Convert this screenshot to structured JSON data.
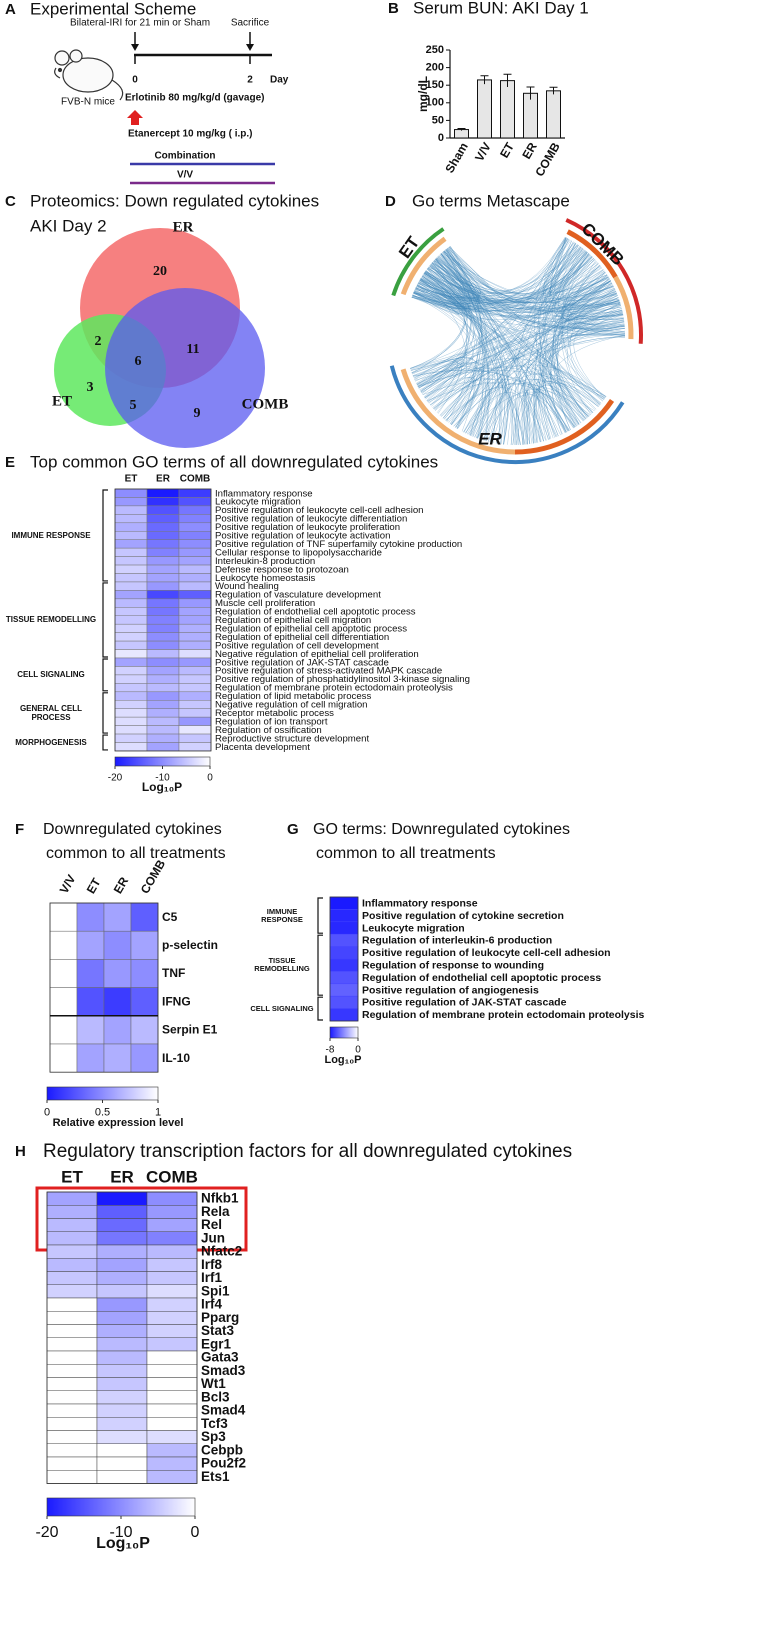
{
  "panel_a": {
    "letter": "A",
    "title": "Experimental Scheme",
    "mouse": "FVB-N mice",
    "injury": "Bilateral-IRI for 21 min or Sham",
    "endpoint": "Sacrifice",
    "timeline_ticks": [
      0,
      2
    ],
    "timeline_unit": "Day",
    "treatments": [
      {
        "label": "Erlotinib 80 mg/kg/d (gavage)",
        "color": "#2e8b2e"
      },
      {
        "label": "Etanercept 10 mg/kg ( i.p.)",
        "color": "#e02020"
      },
      {
        "label": "Combination",
        "color": "#3a3aa8"
      },
      {
        "label": "V/V",
        "color": "#7a2a8a"
      }
    ]
  },
  "panel_c": {
    "letter": "C",
    "title": [
      "Proteomics: Down regulated cytokines",
      "AKI Day 2"
    ],
    "sets": [
      {
        "name": "ER",
        "color": "#f46a6a"
      },
      {
        "name": "ET",
        "color": "#5ee85e"
      },
      {
        "name": "COMB",
        "color": "#5a5af0"
      }
    ],
    "counts": {
      "ER": 20,
      "ER_ET": 2,
      "all": 6,
      "ER_COMB": 11,
      "ET": 3,
      "ET_COMB": 5,
      "COMB": 9
    }
  },
  "panel_d": {
    "letter": "D",
    "title": "Go terms Metascape",
    "labels": [
      "ET",
      "COMB",
      "ER"
    ]
  },
  "chart_data": [
    {
      "type": "bar",
      "letter": "B",
      "title": "Serum BUN: AKI Day 1",
      "y_label": "mg/dL",
      "categories": [
        "Sham",
        "V/V",
        "ET",
        "ER",
        "COMB"
      ],
      "values": [
        24,
        165,
        163,
        127,
        134
      ],
      "errors": [
        3,
        12,
        18,
        18,
        10
      ],
      "color": "#e6e6e6",
      "ylim": [
        0,
        250
      ],
      "yticks": [
        0,
        50,
        100,
        150,
        200,
        250
      ]
    },
    {
      "type": "heatmap",
      "letter": "E",
      "title": "Top common GO terms of all downregulated cytokines",
      "columns": [
        "ET",
        "ER",
        "COMB"
      ],
      "zlim": [
        -20,
        0
      ],
      "zticks": [
        -20,
        -10,
        0
      ],
      "zlabel": "Log₁₀P",
      "colors": [
        "#1a1aff",
        "#ffffff"
      ],
      "groups": [
        {
          "label": "IMMUNE RESPONSE",
          "rows": [
            "Inflammatory response",
            "Leukocyte migration",
            "Positive regulation of leukocyte cell-cell adhesion",
            "Positive regulation of leukocyte differentiation",
            "Positive regulation of leukocyte proliferation",
            "Positive regulation of leukocyte activation",
            "Positive regulation of TNF superfamily cytokine production",
            "Cellular response to lipopolysaccharide",
            "Interleukin-8 production",
            "Defense response to protozoan",
            "Leukocyte homeostasis"
          ],
          "values": [
            [
              -10,
              -20,
              -17
            ],
            [
              -9,
              -18,
              -15
            ],
            [
              -6,
              -15,
              -12
            ],
            [
              -6,
              -14,
              -11
            ],
            [
              -7,
              -13,
              -10
            ],
            [
              -6,
              -13,
              -11
            ],
            [
              -8,
              -12,
              -10
            ],
            [
              -5,
              -11,
              -9
            ],
            [
              -5,
              -9,
              -8
            ],
            [
              -4,
              -8,
              -6
            ],
            [
              -5,
              -8,
              -7
            ]
          ]
        },
        {
          "label": "TISSUE REMODELLING",
          "rows": [
            "Wound healing",
            "Regulation of vasculature development",
            "Muscle cell proliferation",
            "Regulation of endothelial cell apoptotic process",
            "Regulation of epithelial cell migration",
            "Regulation of epithelial cell apoptotic process",
            "Regulation of epithelial cell differentiation",
            "Positive regulation of cell development",
            "Negative regulation of epithelial cell proliferation"
          ],
          "values": [
            [
              -5,
              -9,
              -6
            ],
            [
              -8,
              -16,
              -14
            ],
            [
              -6,
              -12,
              -9
            ],
            [
              -5,
              -12,
              -8
            ],
            [
              -5,
              -11,
              -8
            ],
            [
              -4,
              -11,
              -7
            ],
            [
              -4,
              -10,
              -7
            ],
            [
              -5,
              -10,
              -7
            ],
            [
              -2,
              -6,
              -3
            ]
          ]
        },
        {
          "label": "CELL SIGNALING",
          "rows": [
            "Positive regulation of JAK-STAT cascade",
            "Positive regulation of stress-activated MAPK cascade",
            "Positive regulation of phosphatidylinositol 3-kinase signaling",
            "Regulation of membrane protein ectodomain proteolysis"
          ],
          "values": [
            [
              -8,
              -10,
              -9
            ],
            [
              -4,
              -8,
              -6
            ],
            [
              -4,
              -7,
              -5
            ],
            [
              -5,
              -6,
              -5
            ]
          ]
        },
        {
          "label": "GENERAL CELL PROCESS",
          "rows": [
            "Regulation of lipid metabolic process",
            "Negative regulation of cell migration",
            "Receptor metabolic process",
            "Regulation of ion transport",
            "Regulation of ossification"
          ],
          "values": [
            [
              -6,
              -9,
              -7
            ],
            [
              -4,
              -8,
              -5
            ],
            [
              -3,
              -7,
              -5
            ],
            [
              -3,
              -6,
              -9
            ],
            [
              -3,
              -6,
              -2
            ]
          ]
        },
        {
          "label": "MORPHOGENESIS",
          "rows": [
            "Reproductive structure development",
            "Placenta development"
          ],
          "values": [
            [
              -4,
              -7,
              -5
            ],
            [
              -3,
              -8,
              -4
            ]
          ]
        }
      ]
    },
    {
      "type": "heatmap",
      "letter": "F",
      "title": [
        "Downregulated cytokines",
        "common to all treatments"
      ],
      "columns": [
        "V/V",
        "ET",
        "ER",
        "COMB"
      ],
      "zlim": [
        0,
        1
      ],
      "zticks": [
        0,
        0.5,
        1
      ],
      "zlabel": "Relative expression level",
      "colors": [
        "#1a1aff",
        "#ffffff"
      ],
      "rows": [
        "C5",
        "p-selectin",
        "TNF",
        "IFNG",
        "Serpin E1",
        "IL-10"
      ],
      "values": [
        [
          1,
          0.5,
          0.6,
          0.3
        ],
        [
          1,
          0.6,
          0.5,
          0.6
        ],
        [
          1,
          0.4,
          0.55,
          0.5
        ],
        [
          1,
          0.25,
          0.15,
          0.3
        ],
        [
          1,
          0.7,
          0.6,
          0.7
        ],
        [
          1,
          0.6,
          0.65,
          0.55
        ]
      ]
    },
    {
      "type": "heatmap",
      "letter": "G",
      "title": [
        "GO terms: Downregulated cytokines",
        "common to all treatments"
      ],
      "zlim": [
        -8,
        0
      ],
      "zticks": [
        -8,
        0
      ],
      "zlabel": "Log₁₀P",
      "colors": [
        "#1a1aff",
        "#ffffff"
      ],
      "groups": [
        {
          "label": "IMMUNE RESPONSE",
          "rows": [
            "Inflammatory response",
            "Positive regulation of cytokine secretion",
            "Leukocyte migration"
          ],
          "values": [
            [
              -8
            ],
            [
              -7.5
            ],
            [
              -7.5
            ]
          ]
        },
        {
          "label": "TISSUE REMODELLING",
          "rows": [
            "Regulation of interleukin-6 production",
            "Positive regulation of leukocyte cell-cell adhesion",
            "Regulation of response to wounding",
            "Regulation of endothelial cell apoptotic process",
            "Positive regulation of angiogenesis"
          ],
          "values": [
            [
              -6
            ],
            [
              -6.5
            ],
            [
              -7
            ],
            [
              -6
            ],
            [
              -5.5
            ]
          ]
        },
        {
          "label": "CELL SIGNALING",
          "rows": [
            "Positive regulation of JAK-STAT cascade",
            "Regulation of membrane protein ectodomain proteolysis"
          ],
          "values": [
            [
              -6
            ],
            [
              -7
            ]
          ]
        }
      ]
    },
    {
      "type": "heatmap",
      "letter": "H",
      "title": "Regulatory transcription factors for all downregulated cytokines",
      "columns": [
        "ET",
        "ER",
        "COMB"
      ],
      "zlim": [
        -20,
        0
      ],
      "zticks": [
        -20,
        -10,
        0
      ],
      "zlabel": "Log₁₀P",
      "colors": [
        "#1a1aff",
        "#ffffff"
      ],
      "rows": [
        "Nfkb1",
        "Rela",
        "Rel",
        "Jun",
        "Nfatc2",
        "Irf8",
        "Irf1",
        "Spi1",
        "Irf4",
        "Pparg",
        "Stat3",
        "Egr1",
        "Gata3",
        "Smad3",
        "Wt1",
        "Bcl3",
        "Smad4",
        "Tcf3",
        "Sp3",
        "Cebpb",
        "Pou2f2",
        "Ets1"
      ],
      "values": [
        [
          -8,
          -20,
          -10
        ],
        [
          -7,
          -14,
          -9
        ],
        [
          -6,
          -13,
          -8
        ],
        [
          -6,
          -12,
          -11
        ],
        [
          -5,
          -7,
          -6
        ],
        [
          -6,
          -8,
          -5
        ],
        [
          -5,
          -7,
          -5
        ],
        [
          -4,
          -5,
          -3
        ],
        [
          null,
          -9,
          -4
        ],
        [
          null,
          -8,
          -4
        ],
        [
          null,
          -7,
          -4
        ],
        [
          null,
          -6,
          -5
        ],
        [
          null,
          -6,
          null
        ],
        [
          null,
          -5,
          null
        ],
        [
          null,
          -5,
          null
        ],
        [
          null,
          -4,
          null
        ],
        [
          null,
          -4,
          null
        ],
        [
          null,
          -4,
          null
        ],
        [
          null,
          -3,
          -3
        ],
        [
          null,
          null,
          -6
        ],
        [
          null,
          null,
          -6
        ],
        [
          null,
          null,
          -6
        ]
      ]
    }
  ]
}
